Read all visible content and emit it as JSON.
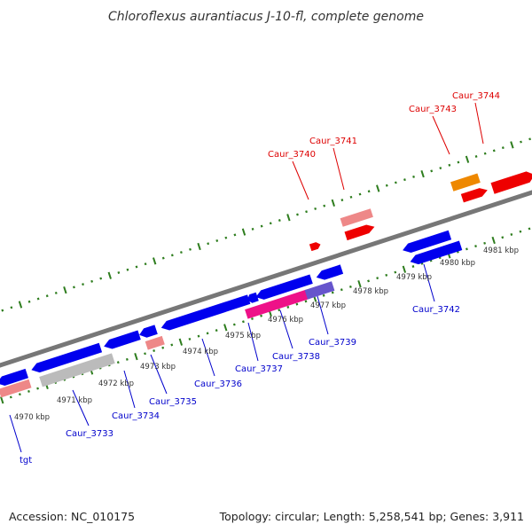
{
  "title": "Chloroflexus aurantiacus J-10-fl, complete genome",
  "footer": {
    "accession": "Accession: NC_010175",
    "summary": "Topology: circular; Length: 5,258,541 bp; Genes: 3,911"
  },
  "colors": {
    "backbone": "#777777",
    "tick_major": "#2e7d1e",
    "tick_minor": "#2e7d1e",
    "label_blue": "#0000cc",
    "label_red": "#dd0000"
  },
  "kbp_labels": [
    "4970 kbp",
    "4971 kbp",
    "4972 kbp",
    "4973 kbp",
    "4974 kbp",
    "4975 kbp",
    "4976 kbp",
    "4977 kbp",
    "4978 kbp",
    "4979 kbp",
    "4980 kbp",
    "4981 kbp"
  ],
  "gene_labels": [
    {
      "id": "tgt",
      "text": "tgt",
      "strand": "minus"
    },
    {
      "id": "caur-3733",
      "text": "Caur_3733",
      "strand": "minus"
    },
    {
      "id": "caur-3734",
      "text": "Caur_3734",
      "strand": "minus"
    },
    {
      "id": "caur-3735",
      "text": "Caur_3735",
      "strand": "minus"
    },
    {
      "id": "caur-3736",
      "text": "Caur_3736",
      "strand": "minus"
    },
    {
      "id": "caur-3737",
      "text": "Caur_3737",
      "strand": "minus"
    },
    {
      "id": "caur-3738",
      "text": "Caur_3738",
      "strand": "minus"
    },
    {
      "id": "caur-3739",
      "text": "Caur_3739",
      "strand": "minus"
    },
    {
      "id": "caur-3742",
      "text": "Caur_3742",
      "strand": "minus"
    },
    {
      "id": "caur-3740",
      "text": "Caur_3740",
      "strand": "plus"
    },
    {
      "id": "caur-3741",
      "text": "Caur_3741",
      "strand": "plus"
    },
    {
      "id": "caur-3743",
      "text": "Caur_3743",
      "strand": "plus"
    },
    {
      "id": "caur-3744",
      "text": "Caur_3744",
      "strand": "plus"
    }
  ],
  "gene_features": [
    {
      "id": "f-tgt",
      "color": "#0000ee",
      "dir": "left"
    },
    {
      "id": "f-tgt-pale",
      "color": "#ee8888",
      "dir": "none"
    },
    {
      "id": "f-3733",
      "color": "#bbbbbb",
      "dir": "none"
    },
    {
      "id": "f-3733-blue",
      "color": "#0000ee",
      "dir": "left"
    },
    {
      "id": "f-3734",
      "color": "#0000ee",
      "dir": "left"
    },
    {
      "id": "f-3735-pale",
      "color": "#ee8888",
      "dir": "none"
    },
    {
      "id": "f-3735",
      "color": "#0000ee",
      "dir": "left"
    },
    {
      "id": "f-3736",
      "color": "#0000ee",
      "dir": "left"
    },
    {
      "id": "f-3737",
      "color": "#0000ee",
      "dir": "left"
    },
    {
      "id": "f-3737-small",
      "color": "#0000ee",
      "dir": "left"
    },
    {
      "id": "f-3738",
      "color": "#ee1188",
      "dir": "none"
    },
    {
      "id": "f-3739",
      "color": "#0000ee",
      "dir": "left"
    },
    {
      "id": "f-3739-purple",
      "color": "#6655cc",
      "dir": "none"
    },
    {
      "id": "f-3742a",
      "color": "#0000ee",
      "dir": "left"
    },
    {
      "id": "f-3742b",
      "color": "#0000ee",
      "dir": "left"
    },
    {
      "id": "f-3740-red",
      "color": "#ee0000",
      "dir": "right"
    },
    {
      "id": "f-3741-pale",
      "color": "#ee8888",
      "dir": "none"
    },
    {
      "id": "f-3741",
      "color": "#ee0000",
      "dir": "right"
    },
    {
      "id": "f-3743",
      "color": "#ee8800",
      "dir": "none"
    },
    {
      "id": "f-3743-red",
      "color": "#ee0000",
      "dir": "right"
    },
    {
      "id": "f-3744",
      "color": "#ee0000",
      "dir": "right"
    }
  ]
}
